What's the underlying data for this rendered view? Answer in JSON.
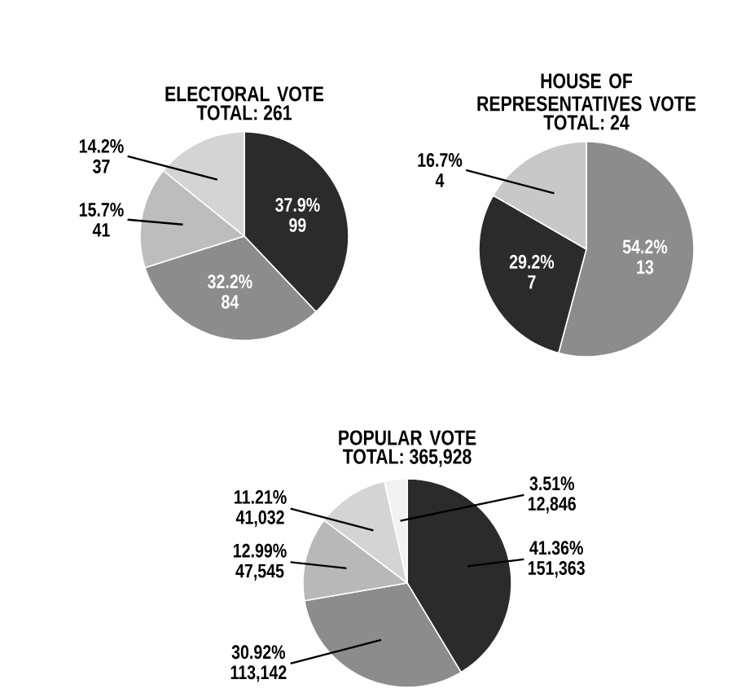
{
  "chart_data": [
    {
      "type": "pie",
      "title": "ELECTORAL VOTE",
      "subtitle": "TOTAL: 261",
      "categories": [
        null,
        null,
        null,
        null
      ],
      "values": [
        99,
        84,
        41,
        37
      ],
      "colors": [
        "#2b2b2b",
        "#8c8c8c",
        "#bdbdbd",
        "#d4d4d4"
      ],
      "value_labels": [
        "99",
        "84",
        "41",
        "37"
      ],
      "annotations": [
        "37.9%",
        "32.2%",
        "15.7%",
        "14.2%"
      ]
    },
    {
      "type": "pie",
      "title": "HOUSE OF REPRESENTATIVES VOTE",
      "subtitle": "TOTAL: 24",
      "categories": [
        null,
        null,
        null
      ],
      "values": [
        13,
        7,
        4
      ],
      "colors": [
        "#8c8c8c",
        "#2b2b2b",
        "#c8c8c8"
      ],
      "value_labels": [
        "13",
        "7",
        "4"
      ],
      "annotations": [
        "54.2%",
        "29.2%",
        "16.7%"
      ]
    },
    {
      "type": "pie",
      "title": "POPULAR VOTE",
      "subtitle": "TOTAL: 365,928",
      "categories": [
        null,
        null,
        null,
        null,
        null
      ],
      "values": [
        151363,
        113142,
        47545,
        41032,
        12846
      ],
      "colors": [
        "#2b2b2b",
        "#8c8c8c",
        "#b8b8b8",
        "#d4d4d4",
        "#f2f2f2"
      ],
      "value_labels": [
        "151,363",
        "113,142",
        "47,545",
        "41,032",
        "12,846"
      ],
      "annotations": [
        "41.36%",
        "30.92%",
        "12.99%",
        "11.21%",
        "3.51%"
      ]
    }
  ]
}
